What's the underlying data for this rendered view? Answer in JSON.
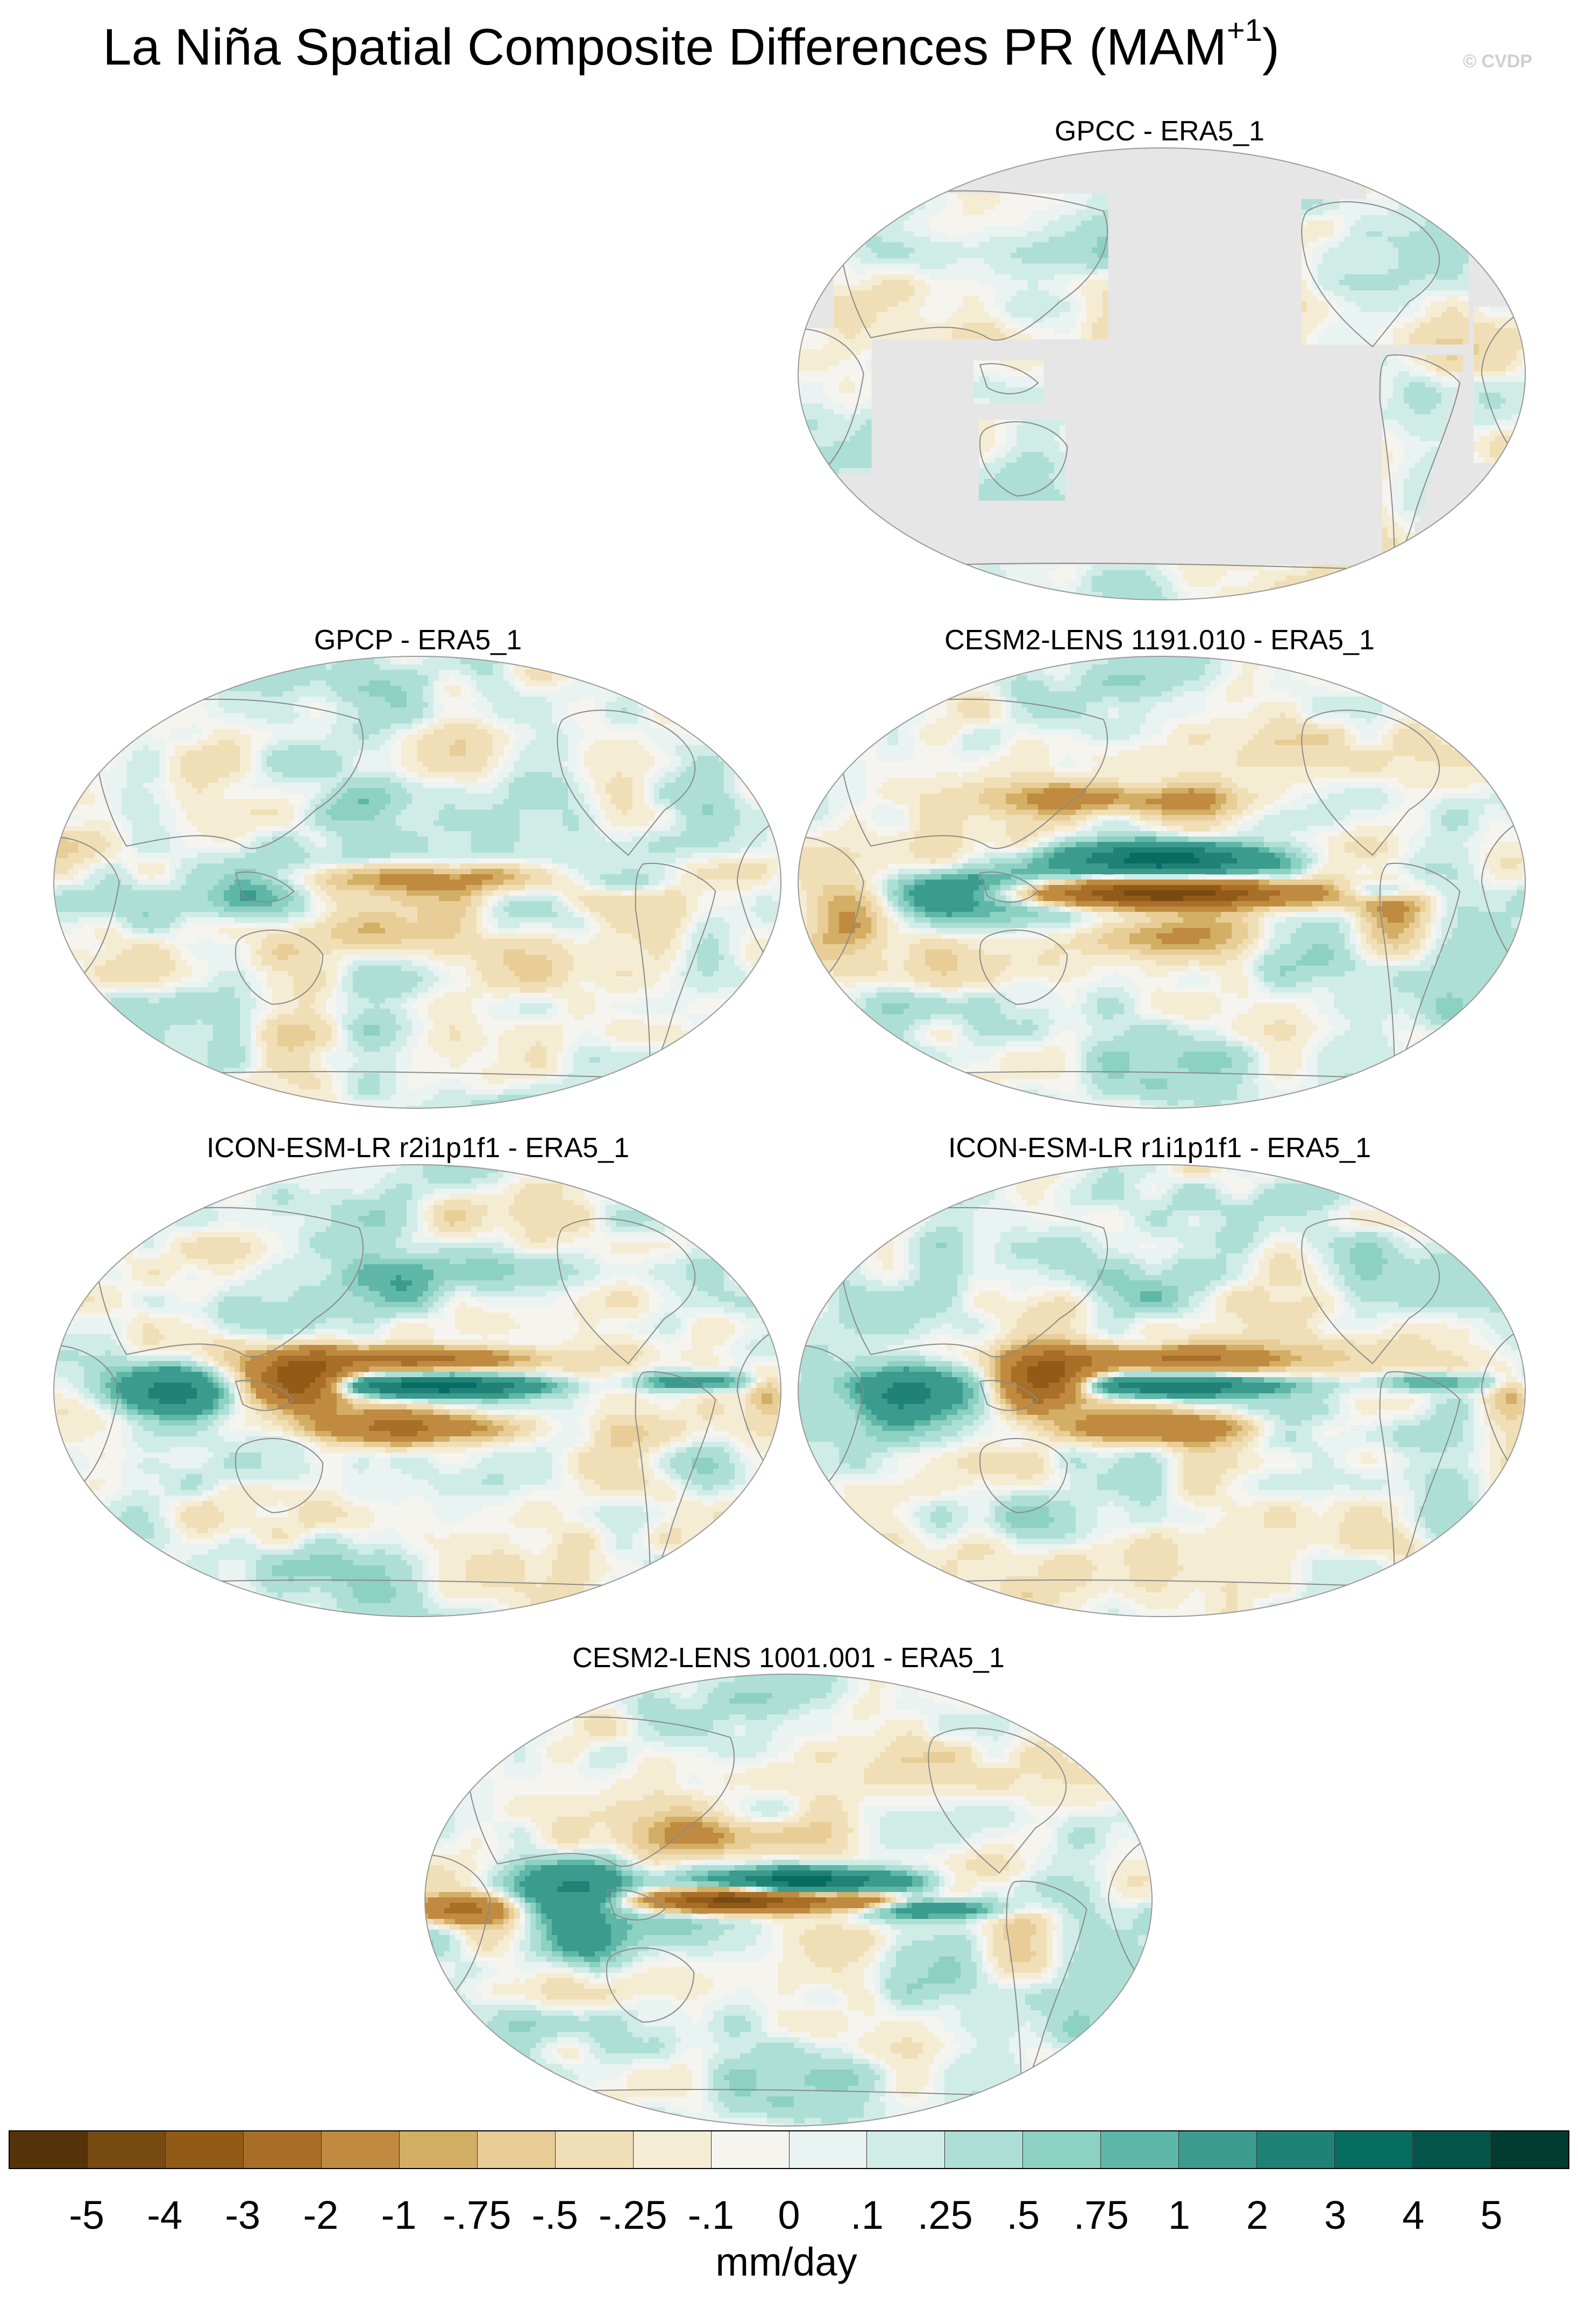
{
  "figure": {
    "title": "La Niña Spatial Composite Differences PR (MAM",
    "title_sup": "+1",
    "title_close": ")",
    "watermark": "© CVDP"
  },
  "panels": [
    {
      "title": "GPCC - ERA5_1",
      "coverage": "land-only",
      "pattern": "gpcc"
    },
    {
      "title": "GPCP - ERA5_1",
      "coverage": "global",
      "pattern": "gpcp"
    },
    {
      "title": "CESM2-LENS 1191.010 - ERA5_1",
      "coverage": "global",
      "pattern": "cesm1191"
    },
    {
      "title": "ICON-ESM-LR r2i1p1f1 - ERA5_1",
      "coverage": "global",
      "pattern": "icon_r2"
    },
    {
      "title": "ICON-ESM-LR r1i1p1f1 - ERA5_1",
      "coverage": "global",
      "pattern": "icon_r1"
    },
    {
      "title": "CESM2-LENS 1001.001 - ERA5_1",
      "coverage": "global",
      "pattern": "cesm1001"
    }
  ],
  "colorbar": {
    "units": "mm/day",
    "tick_labels": [
      "-5",
      "-4",
      "-3",
      "-2",
      "-1",
      "-.75",
      "-.5",
      "-.25",
      "-.1",
      "0",
      ".1",
      ".25",
      ".5",
      ".75",
      "1",
      "2",
      "3",
      "4",
      "5"
    ],
    "levels": [
      -5,
      -4,
      -3,
      -2,
      -1,
      -0.75,
      -0.5,
      -0.25,
      -0.1,
      0,
      0.1,
      0.25,
      0.5,
      0.75,
      1,
      2,
      3,
      4,
      5
    ],
    "colors": [
      "#553308",
      "#774a12",
      "#925a17",
      "#a96f28",
      "#c08b40",
      "#d3ae65",
      "#e8cd96",
      "#f0dfb6",
      "#f5ecd4",
      "#f5f4ef",
      "#e9f3f1",
      "#d0ece7",
      "#addfd6",
      "#8dd1c3",
      "#5fb7a8",
      "#3b9b8e",
      "#208176",
      "#076c62",
      "#045549",
      "#023b30"
    ],
    "missing_color": "#e6e6e6",
    "coastline_color": "#8a8a8a"
  }
}
